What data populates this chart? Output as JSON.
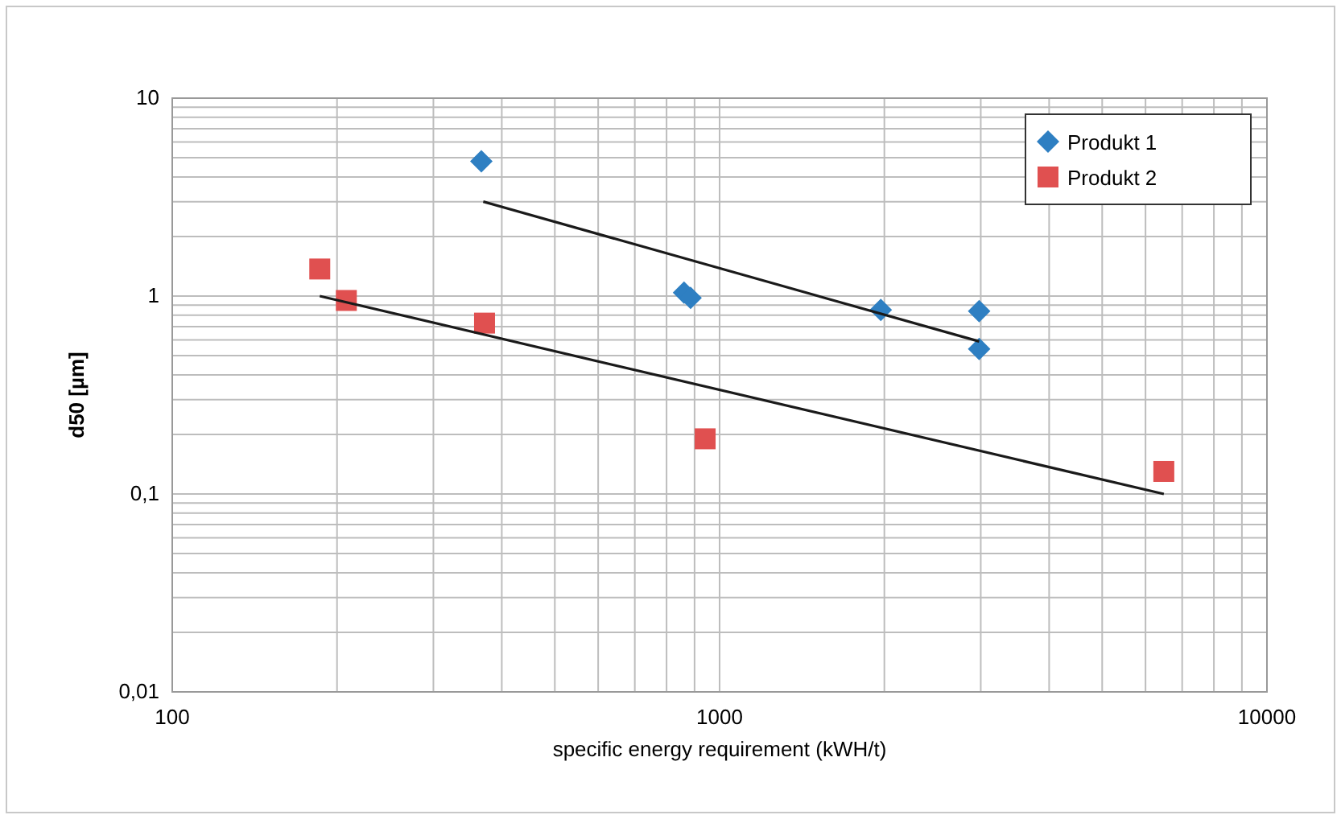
{
  "chart_data": {
    "type": "scatter",
    "xlabel": "specific energy requirement (kWH/t)",
    "ylabel": "d50 [µm]",
    "log": "xy",
    "grid": true,
    "legend": "top right",
    "xlim": [
      100,
      10000
    ],
    "xticks": [
      100,
      1000,
      10000
    ],
    "ylim": [
      0.01,
      10
    ],
    "yticks": [
      {
        "value": 0.01,
        "label": "0,01"
      },
      {
        "value": 0.1,
        "label": "0,1"
      },
      1,
      10
    ],
    "series": [
      {
        "name": "Produkt 1",
        "color": "#2e7fc2",
        "marker": "diamond",
        "x": [
          367,
          861,
          885,
          1970,
          2980,
          2980
        ],
        "values": [
          4.8,
          1.04,
          0.98,
          0.85,
          0.84,
          0.54
        ]
      },
      {
        "name": "Produkt 2",
        "color": "#e05050",
        "marker": "square",
        "x": [
          186,
          208,
          372,
          941,
          6480
        ],
        "values": [
          1.37,
          0.95,
          0.73,
          0.19,
          0.13
        ]
      },
      {
        "type": "line",
        "color": "#1a1a1a",
        "x": [
          370,
          2980
        ],
        "values": [
          3.0,
          0.59
        ]
      },
      {
        "type": "line",
        "color": "#1a1a1a",
        "x": [
          186,
          6480
        ],
        "values": [
          1.0,
          0.1
        ]
      }
    ]
  }
}
